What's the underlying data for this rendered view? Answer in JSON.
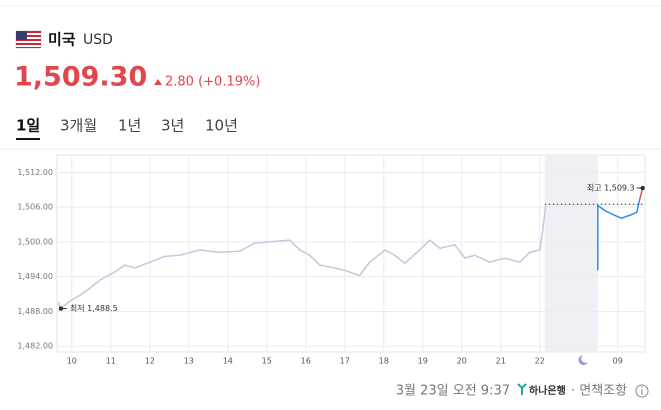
{
  "header": {
    "country": "미국",
    "currency": "USD",
    "price": "1,509.30",
    "change": "2.80 (+0.19%)"
  },
  "tabs": [
    "1일",
    "3개월",
    "1년",
    "3년",
    "10년"
  ],
  "chart_data": {
    "type": "line",
    "xlim": [
      -0.38,
      14.7
    ],
    "ylim": [
      1481,
      1515
    ],
    "xticks": [
      {
        "value": 0,
        "label": "10"
      },
      {
        "value": 1,
        "label": "11"
      },
      {
        "value": 2,
        "label": "12"
      },
      {
        "value": 3,
        "label": "13"
      },
      {
        "value": 4,
        "label": "14"
      },
      {
        "value": 5,
        "label": "15"
      },
      {
        "value": 6,
        "label": "16"
      },
      {
        "value": 7,
        "label": "17"
      },
      {
        "value": 8,
        "label": "18"
      },
      {
        "value": 9,
        "label": "19"
      },
      {
        "value": 10,
        "label": "20"
      },
      {
        "value": 11,
        "label": "21"
      },
      {
        "value": 12,
        "label": "22"
      },
      {
        "value": 14,
        "label": "09"
      }
    ],
    "yticks": [
      {
        "value": 1482,
        "label": "1,482.00"
      },
      {
        "value": 1488,
        "label": "1,488.00"
      },
      {
        "value": 1494,
        "label": "1,494.00"
      },
      {
        "value": 1500,
        "label": "1,500.00"
      },
      {
        "value": 1506,
        "label": "1,506.00"
      },
      {
        "value": 1512,
        "label": "1,512.00"
      }
    ],
    "grid": true,
    "shaded_range": [
      12.13,
      13.49
    ],
    "reference_value": 1506.5,
    "series": [
      {
        "color": "#c6c6dd",
        "x": [
          -0.35,
          -0.28,
          -0.05,
          0.21,
          0.46,
          0.72,
          1.1,
          1.36,
          1.62,
          2,
          2.38,
          2.77,
          3.28,
          3.79,
          4.31,
          4.69,
          5.08,
          5.59,
          5.85,
          6.1,
          6.36,
          6.74,
          7,
          7.38,
          7.64,
          8.03,
          8.28,
          8.54,
          8.92,
          9.18,
          9.44,
          9.82,
          10.08,
          10.33,
          10.72,
          11.1,
          11.49,
          11.74,
          12,
          12.08,
          12.15
        ],
        "values": [
          1489.6,
          1488.5,
          1489.8,
          1490.8,
          1492,
          1493.4,
          1494.8,
          1496,
          1495.5,
          1496.5,
          1497.5,
          1497.7,
          1498.6,
          1498.2,
          1498.4,
          1499.8,
          1500,
          1500.3,
          1498.6,
          1497.7,
          1496,
          1495.5,
          1495.1,
          1494.2,
          1496.5,
          1498.6,
          1497.7,
          1496.3,
          1498.6,
          1500.3,
          1498.9,
          1499.5,
          1497.2,
          1497.7,
          1496.5,
          1497.2,
          1496.5,
          1498.2,
          1498.6,
          1502,
          1506.3
        ]
      },
      {
        "color": "#2f8de4",
        "x": [
          13.49,
          13.49,
          13.67,
          13.92,
          14.1,
          14.31,
          14.49,
          14.56
        ],
        "values": [
          1495.1,
          1506.3,
          1505.4,
          1504.6,
          1504.1,
          1504.6,
          1505.1,
          1507.2
        ]
      },
      {
        "color": "#d9534f",
        "x": [
          14.56,
          14.64
        ],
        "values": [
          1507.2,
          1509.3
        ]
      }
    ],
    "annotations": [
      {
        "label": "최고 1,509.3",
        "x": 14.64,
        "value": 1509.3
      },
      {
        "label": "최저 1,488.5",
        "x": -0.28,
        "value": 1488.5
      }
    ]
  },
  "footer": {
    "timestamp": "3월 23일 오전 9:37",
    "bank": "하나은행",
    "disclaimer": "· 면책조항"
  }
}
